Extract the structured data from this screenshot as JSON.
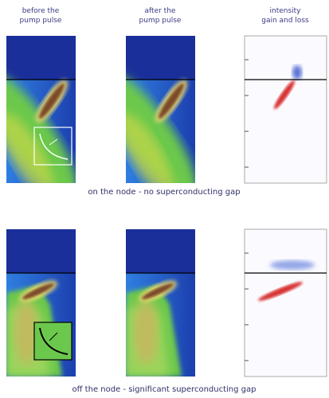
{
  "header_labels": [
    [
      "before the",
      "pump pulse"
    ],
    [
      "after the",
      "pump pulse"
    ],
    [
      "intensity",
      "gain and loss"
    ]
  ],
  "rows": [
    {
      "caption": "on the node - no superconducting gap"
    },
    {
      "caption": "off the node - significant superconducting gap"
    }
  ]
}
